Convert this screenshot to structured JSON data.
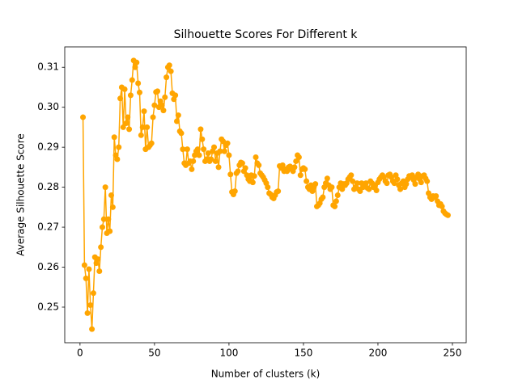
{
  "chart_data": {
    "type": "line",
    "title": "Silhouette Scores For Different k",
    "xlabel": "Number of clusters (k)",
    "ylabel": "Average Silhouette Score",
    "x": [
      2,
      3,
      4,
      5,
      6,
      7,
      8,
      9,
      10,
      11,
      12,
      13,
      14,
      15,
      16,
      17,
      18,
      19,
      20,
      21,
      22,
      23,
      24,
      25,
      26,
      27,
      28,
      29,
      30,
      31,
      32,
      33,
      34,
      35,
      36,
      37,
      38,
      39,
      40,
      41,
      42,
      43,
      44,
      45,
      46,
      47,
      48,
      49,
      50,
      51,
      52,
      53,
      54,
      55,
      56,
      57,
      58,
      59,
      60,
      61,
      62,
      63,
      64,
      65,
      66,
      67,
      68,
      69,
      70,
      71,
      72,
      73,
      74,
      75,
      76,
      77,
      78,
      79,
      80,
      81,
      82,
      83,
      84,
      85,
      86,
      87,
      88,
      89,
      90,
      91,
      92,
      93,
      94,
      95,
      96,
      97,
      98,
      99,
      100,
      101,
      102,
      103,
      104,
      105,
      106,
      107,
      108,
      109,
      110,
      111,
      112,
      113,
      114,
      115,
      116,
      117,
      118,
      119,
      120,
      121,
      122,
      123,
      124,
      125,
      126,
      127,
      128,
      129,
      130,
      131,
      132,
      133,
      134,
      135,
      136,
      137,
      138,
      139,
      140,
      141,
      142,
      143,
      144,
      145,
      146,
      147,
      148,
      149,
      150,
      151,
      152,
      153,
      154,
      155,
      156,
      157,
      158,
      159,
      160,
      161,
      162,
      163,
      164,
      165,
      166,
      167,
      168,
      169,
      170,
      171,
      172,
      173,
      174,
      175,
      176,
      177,
      178,
      179,
      180,
      181,
      182,
      183,
      184,
      185,
      186,
      187,
      188,
      189,
      190,
      191,
      192,
      193,
      194,
      195,
      196,
      197,
      198,
      199,
      200,
      201,
      202,
      203,
      204,
      205,
      206,
      207,
      208,
      209,
      210,
      211,
      212,
      213,
      214,
      215,
      216,
      217,
      218,
      219,
      220,
      221,
      222,
      223,
      224,
      225,
      226,
      227,
      228,
      229,
      230,
      231,
      232,
      233,
      234,
      235,
      236,
      237,
      238,
      239,
      240,
      241,
      242,
      243,
      244,
      245,
      246,
      247
    ],
    "series": [
      {
        "color": "#ffa500",
        "values": [
          0.2975,
          0.2605,
          0.2572,
          0.2485,
          0.2595,
          0.2505,
          0.2445,
          0.2535,
          0.2625,
          0.261,
          0.262,
          0.259,
          0.265,
          0.27,
          0.272,
          0.28,
          0.2685,
          0.272,
          0.269,
          0.278,
          0.275,
          0.2925,
          0.288,
          0.287,
          0.29,
          0.3022,
          0.305,
          0.295,
          0.3045,
          0.296,
          0.2975,
          0.2945,
          0.303,
          0.3068,
          0.3117,
          0.31,
          0.3112,
          0.306,
          0.3037,
          0.293,
          0.295,
          0.299,
          0.2895,
          0.295,
          0.29,
          0.2905,
          0.291,
          0.2975,
          0.3005,
          0.3038,
          0.304,
          0.3,
          0.3015,
          0.3005,
          0.2992,
          0.3025,
          0.3075,
          0.31,
          0.3105,
          0.309,
          0.3035,
          0.302,
          0.303,
          0.2965,
          0.298,
          0.294,
          0.2935,
          0.2895,
          0.286,
          0.2855,
          0.2895,
          0.286,
          0.2865,
          0.2845,
          0.2865,
          0.288,
          0.289,
          0.2895,
          0.288,
          0.2945,
          0.292,
          0.2895,
          0.2865,
          0.287,
          0.2885,
          0.2865,
          0.287,
          0.289,
          0.29,
          0.2865,
          0.2885,
          0.285,
          0.289,
          0.292,
          0.2915,
          0.289,
          0.2905,
          0.291,
          0.288,
          0.2832,
          0.2788,
          0.2782,
          0.279,
          0.2835,
          0.284,
          0.2855,
          0.2862,
          0.286,
          0.284,
          0.2848,
          0.283,
          0.282,
          0.2815,
          0.283,
          0.2812,
          0.2828,
          0.2875,
          0.286,
          0.2855,
          0.2835,
          0.283,
          0.2825,
          0.2818,
          0.281,
          0.28,
          0.2785,
          0.2782,
          0.2775,
          0.2772,
          0.278,
          0.2788,
          0.279,
          0.2853,
          0.2848,
          0.2855,
          0.284,
          0.2845,
          0.284,
          0.285,
          0.2852,
          0.2845,
          0.284,
          0.285,
          0.2865,
          0.288,
          0.2875,
          0.283,
          0.2845,
          0.2848,
          0.2845,
          0.2815,
          0.28,
          0.2795,
          0.2805,
          0.279,
          0.28,
          0.2808,
          0.2752,
          0.2755,
          0.276,
          0.277,
          0.2775,
          0.28,
          0.281,
          0.2822,
          0.2805,
          0.2795,
          0.28,
          0.2755,
          0.2752,
          0.2765,
          0.278,
          0.28,
          0.281,
          0.2795,
          0.2808,
          0.2805,
          0.281,
          0.282,
          0.2825,
          0.283,
          0.2815,
          0.2795,
          0.28,
          0.281,
          0.2795,
          0.279,
          0.281,
          0.28,
          0.2805,
          0.281,
          0.2798,
          0.2795,
          0.2815,
          0.281,
          0.28,
          0.2805,
          0.2792,
          0.2812,
          0.282,
          0.2825,
          0.283,
          0.2825,
          0.2815,
          0.281,
          0.283,
          0.2832,
          0.2825,
          0.2815,
          0.281,
          0.283,
          0.282,
          0.2805,
          0.2795,
          0.281,
          0.2815,
          0.28,
          0.2808,
          0.282,
          0.2828,
          0.2825,
          0.283,
          0.2818,
          0.2808,
          0.2825,
          0.2832,
          0.282,
          0.2812,
          0.2828,
          0.283,
          0.2822,
          0.2815,
          0.2785,
          0.2775,
          0.277,
          0.2778,
          0.2775,
          0.2778,
          0.2765,
          0.2755,
          0.2758,
          0.2752,
          0.274,
          0.2735,
          0.2732,
          0.273
        ]
      }
    ],
    "xlim": [
      -10.25,
      259.25
    ],
    "xticks": [
      0,
      50,
      100,
      150,
      200,
      250
    ],
    "ylim": [
      0.2411,
      0.3151
    ],
    "yticks": [
      0.25,
      0.26,
      0.27,
      0.28,
      0.29,
      {
        "value": 0.3,
        "label": "0.30"
      },
      0.31
    ],
    "grid": false,
    "marker": true
  }
}
